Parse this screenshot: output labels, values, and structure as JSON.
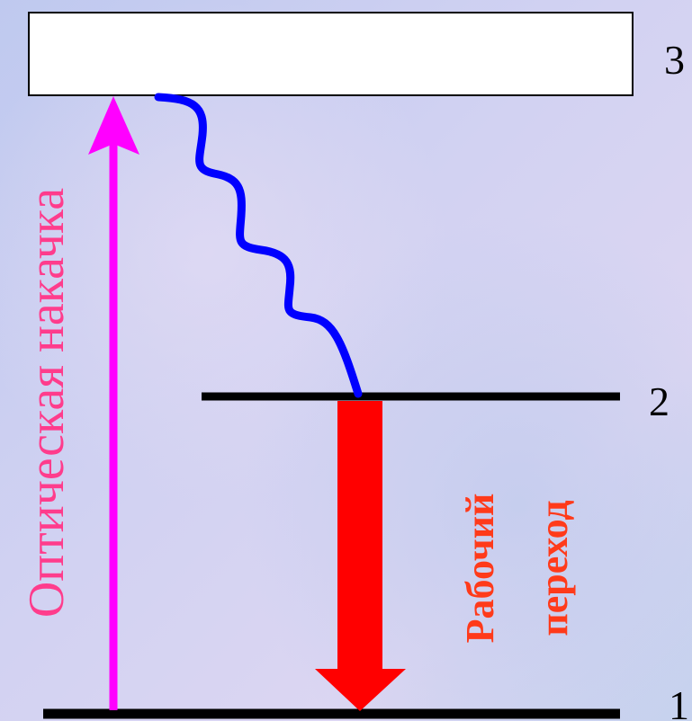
{
  "levels": [
    {
      "label": "3"
    },
    {
      "label": "2"
    },
    {
      "label": "1"
    }
  ],
  "pump_label": "Оптическая накачка",
  "working_transition": {
    "line1": "Рабочий",
    "line2": "переход"
  },
  "colors": {
    "background_a": "#bfc9ef",
    "background_b": "#dcd6f2",
    "pump_arrow": "#ff00ff",
    "pump_text": "#ff3c8c",
    "nonradiative": "#0000ff",
    "working_arrow": "#ff0000",
    "working_text": "#ff3a1a",
    "level_line": "#000000",
    "level3_fill": "#ffffff"
  }
}
